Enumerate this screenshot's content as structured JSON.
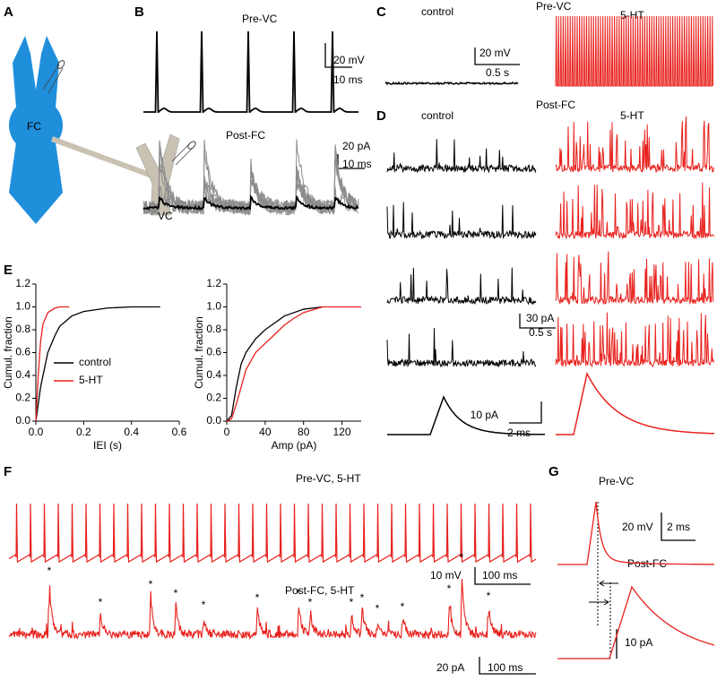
{
  "panel_labels": [
    "A",
    "B",
    "C",
    "D",
    "E",
    "F",
    "G"
  ],
  "a": {
    "fc": "FC",
    "vc": "VC"
  },
  "b": {
    "pre": "Pre-VC",
    "post": "Post-FC",
    "scale1": [
      "20 mV",
      "10 ms"
    ],
    "scale2": [
      "20 pA",
      "10 ms"
    ]
  },
  "c": {
    "control": "control",
    "title": "Pre-VC",
    "treat": "5-HT",
    "scale": [
      "20 mV",
      "0.5 s"
    ]
  },
  "d": {
    "control": "control",
    "title": "Post-FC",
    "treat": "5-HT",
    "scale": [
      "30 pA",
      "0.5 s"
    ],
    "scale_avg": [
      "10 pA",
      "2 ms"
    ]
  },
  "e": {
    "charts": [
      {
        "type": "line",
        "xlabel": "IEI (s)",
        "ylabel": "Cumul. fraction",
        "xlim": [
          0,
          0.6
        ],
        "ylim": [
          0,
          1.2
        ],
        "xticks": [
          {
            "value": 0,
            "label": "0.0"
          },
          {
            "value": 0.2,
            "label": "0.2"
          },
          {
            "value": 0.4,
            "label": "0.4"
          },
          {
            "value": 0.6,
            "label": "0.6"
          }
        ],
        "yticks": [
          {
            "value": 0,
            "label": "0.0"
          },
          {
            "value": 0.2,
            "label": "0.2"
          },
          {
            "value": 0.4,
            "label": "0.4"
          },
          {
            "value": 0.6,
            "label": "0.6"
          },
          {
            "value": 0.8,
            "label": "0.8"
          },
          {
            "value": 1,
            "label": "1.0"
          },
          {
            "value": 1.2,
            "label": "1.2"
          }
        ],
        "series": [
          {
            "name": "control",
            "color": "#000000",
            "x": [
              0,
              0.02,
              0.05,
              0.08,
              0.1,
              0.15,
              0.2,
              0.3,
              0.4,
              0.52
            ],
            "values": [
              0,
              0.3,
              0.6,
              0.75,
              0.83,
              0.92,
              0.96,
              0.99,
              1,
              1
            ]
          },
          {
            "name": "5-HT",
            "color": "#e8211d",
            "x": [
              0,
              0.01,
              0.02,
              0.03,
              0.05,
              0.08,
              0.1,
              0.14
            ],
            "values": [
              0,
              0.4,
              0.7,
              0.85,
              0.95,
              0.99,
              1,
              1
            ]
          }
        ]
      },
      {
        "type": "line",
        "xlabel": "Amp (pA)",
        "ylabel": "Cumul. fraction",
        "xlim": [
          0,
          140
        ],
        "ylim": [
          0,
          1.2
        ],
        "xticks": [
          0,
          40,
          80,
          120
        ],
        "yticks": [
          {
            "value": 0,
            "label": "0.0"
          },
          {
            "value": 0.2,
            "label": "0.2"
          },
          {
            "value": 0.4,
            "label": "0.4"
          },
          {
            "value": 0.6,
            "label": "0.6"
          },
          {
            "value": 0.8,
            "label": "0.8"
          },
          {
            "value": 1,
            "label": "1.0"
          },
          {
            "value": 1.2,
            "label": "1.2"
          }
        ],
        "series": [
          {
            "color": "#000000",
            "x": [
              0,
              5,
              10,
              15,
              20,
              30,
              40,
              50,
              60,
              80,
              100
            ],
            "values": [
              0,
              0.05,
              0.3,
              0.5,
              0.6,
              0.72,
              0.8,
              0.86,
              0.92,
              0.98,
              1
            ]
          },
          {
            "color": "#e8211d",
            "x": [
              0,
              5,
              10,
              20,
              30,
              40,
              50,
              60,
              70,
              80,
              100,
              140
            ],
            "values": [
              0,
              0.02,
              0.15,
              0.45,
              0.6,
              0.68,
              0.76,
              0.84,
              0.9,
              0.95,
              1,
              1
            ]
          }
        ]
      }
    ]
  },
  "f": {
    "pre": "Pre-VC, 5-HT",
    "post": "Post-FC, 5-HT",
    "scale1": [
      "10 mV",
      "100 ms"
    ],
    "scale2": [
      "20 pA",
      "100 ms"
    ],
    "asterisks": [
      "*",
      "*",
      "*",
      "*",
      "*",
      "*",
      "*",
      "*",
      "*",
      "*",
      "*",
      "*",
      "*",
      "*",
      "*"
    ]
  },
  "g": {
    "pre": "Pre-VC",
    "post": "Post-FC",
    "scale1": [
      "20 mV",
      "2 ms"
    ],
    "scale2": [
      "10 pA"
    ]
  }
}
